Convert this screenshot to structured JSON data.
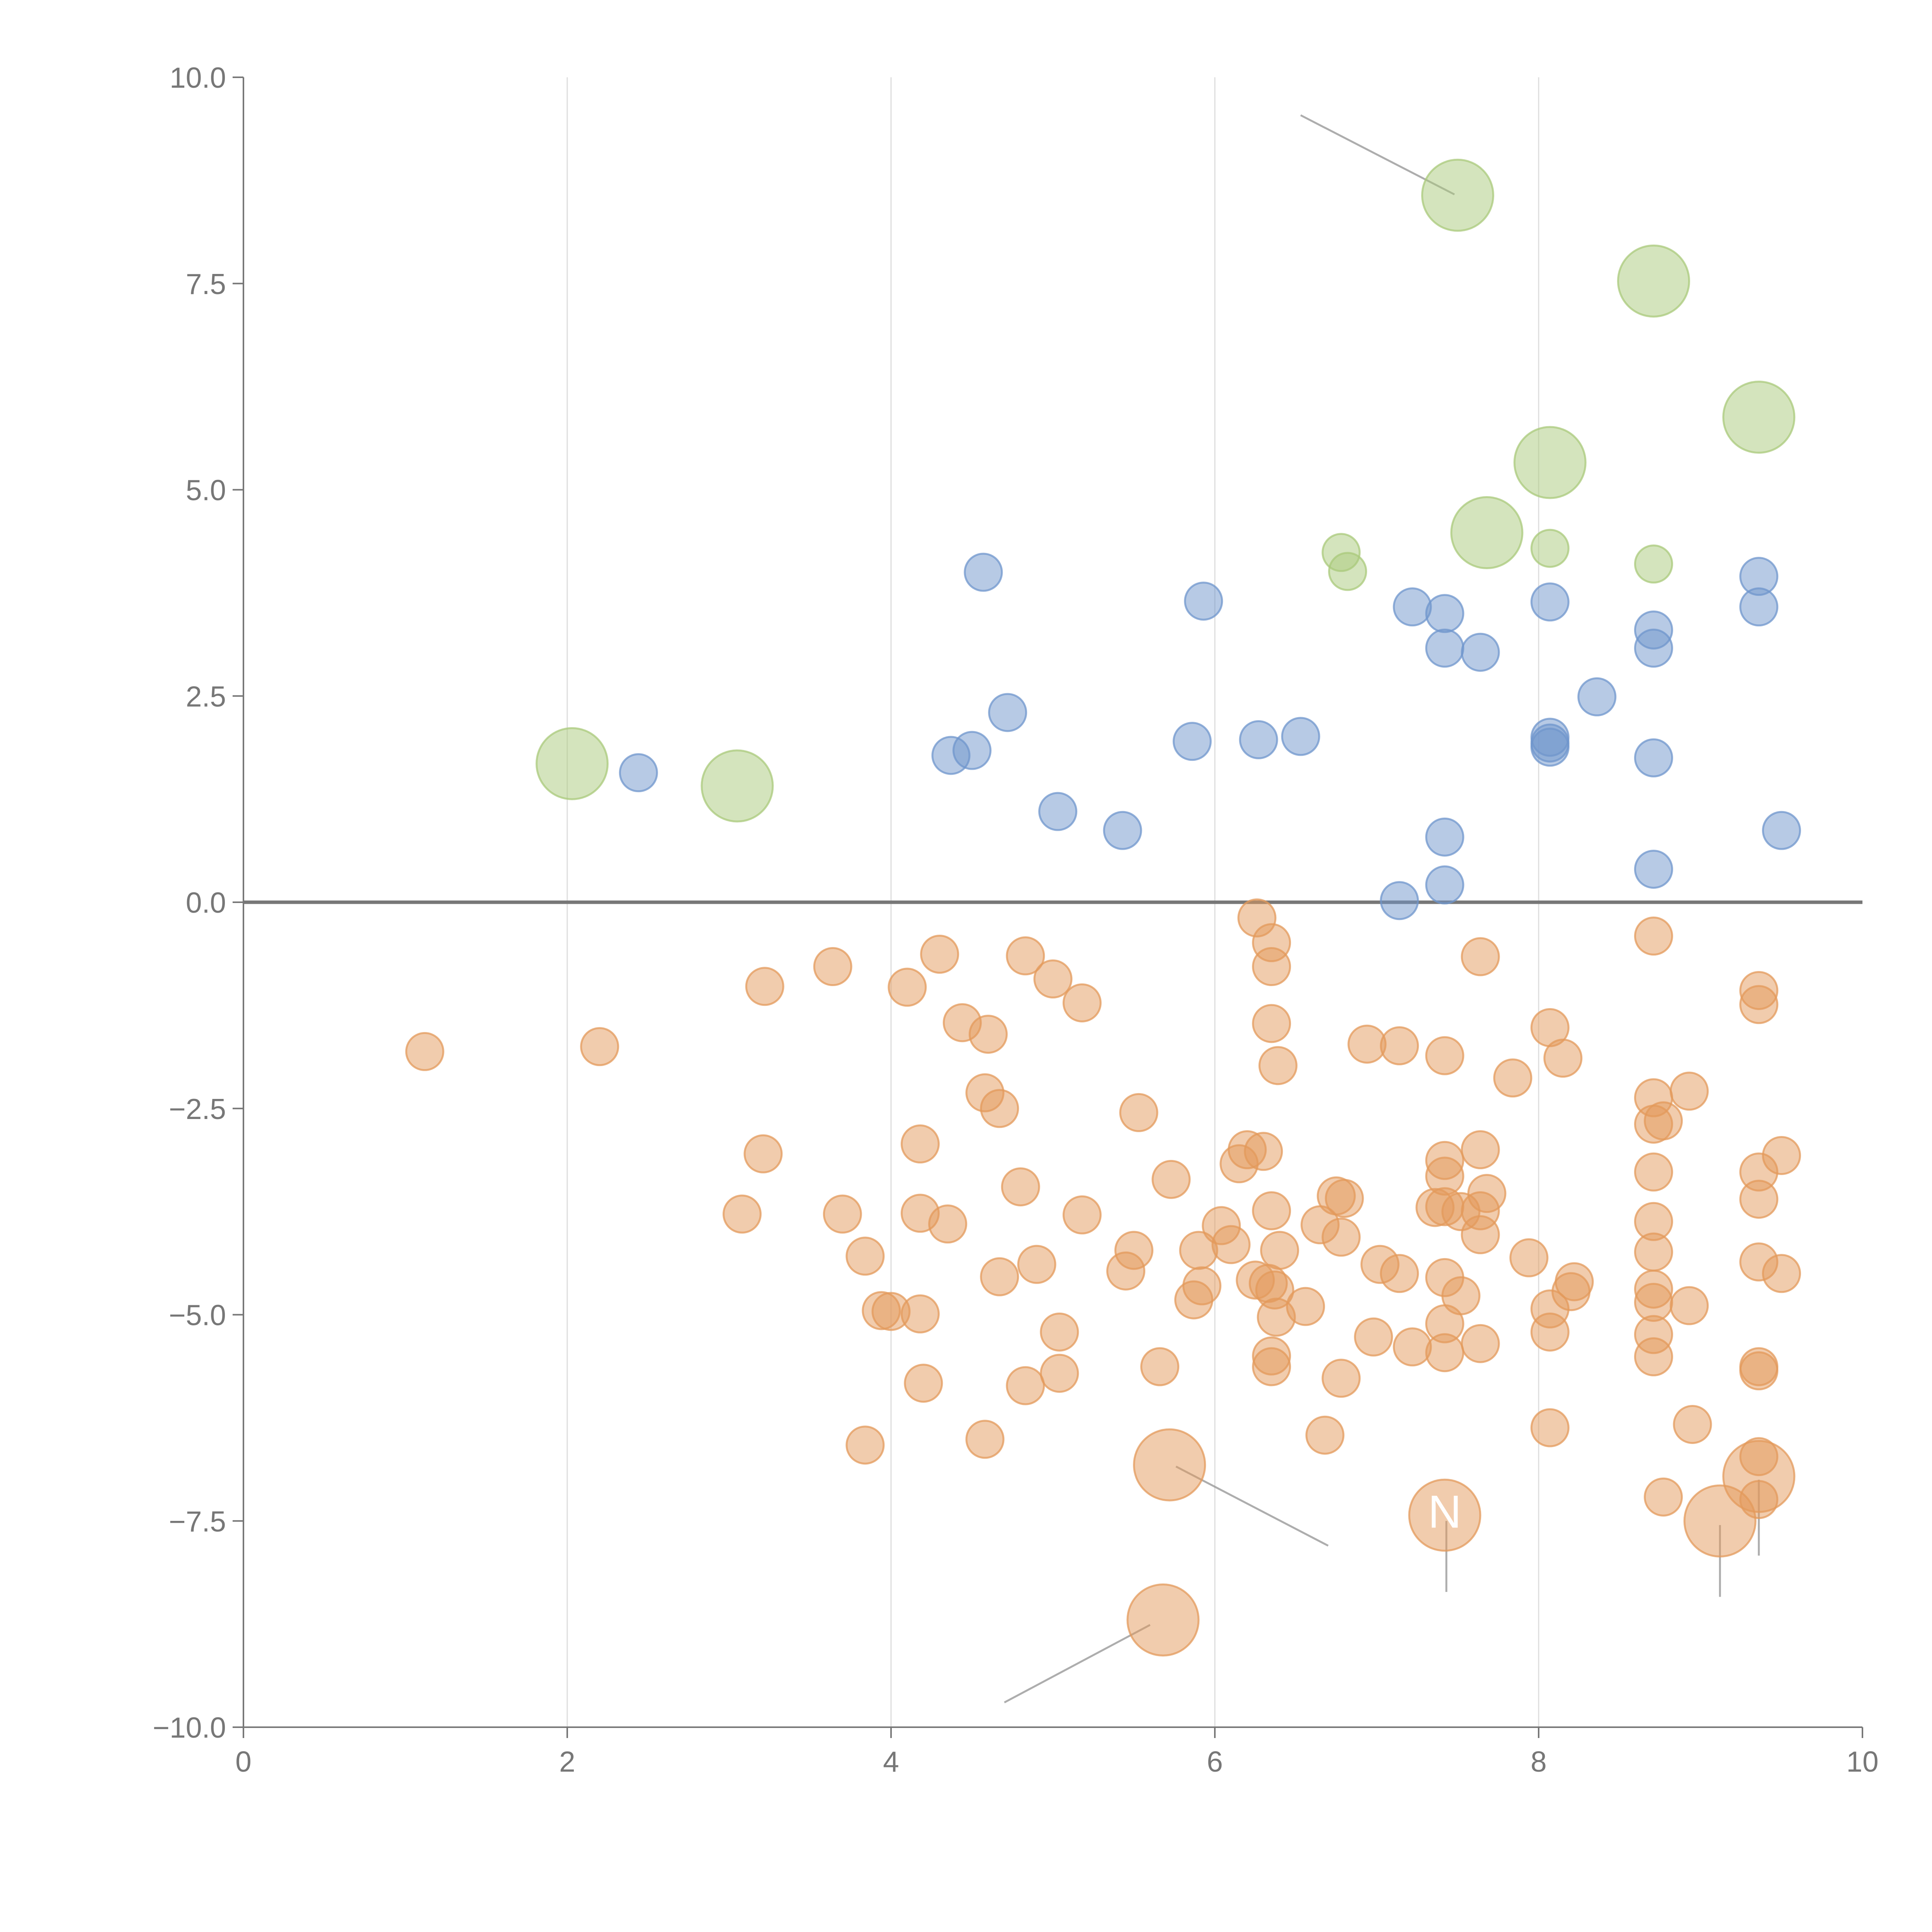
{
  "colors": {
    "blue": "#6f95cc",
    "orange": "#e39a5b",
    "green": "#a9c97b",
    "axis": "#777777",
    "grid": "#dddddd"
  },
  "chart_data": {
    "type": "scatter",
    "title": "",
    "xlabel": "",
    "ylabel": "",
    "xlim": [
      0,
      10
    ],
    "ylim": [
      -10,
      10
    ],
    "grid": "vertical",
    "legend": "none",
    "x_ticks": [
      "0",
      "2",
      "4",
      "6",
      "8",
      "10"
    ],
    "x_tick_values": [
      0,
      2,
      4,
      6,
      8,
      10
    ],
    "y_ticks": [
      "10.0",
      "7.5",
      "5.0",
      "2.5",
      "0.0",
      "−2.5",
      "−5.0",
      "−7.5",
      "−10.0"
    ],
    "y_tick_values": [
      10,
      7.5,
      5,
      2.5,
      0,
      -2.5,
      -5,
      -7.5,
      -10
    ],
    "series": [
      {
        "name": "blue",
        "color": "#6f95cc",
        "size": 1,
        "points": [
          [
            4.57,
            4.0
          ],
          [
            5.93,
            3.65
          ],
          [
            2.44,
            1.57
          ],
          [
            4.37,
            1.78
          ],
          [
            4.5,
            1.84
          ],
          [
            4.72,
            2.3
          ],
          [
            5.03,
            1.1
          ],
          [
            5.43,
            0.87
          ],
          [
            5.86,
            1.95
          ],
          [
            6.27,
            1.97
          ],
          [
            6.53,
            2.01
          ],
          [
            7.22,
            3.58
          ],
          [
            7.42,
            3.5
          ],
          [
            7.42,
            3.08
          ],
          [
            7.64,
            3.03
          ],
          [
            7.42,
            0.79
          ],
          [
            7.42,
            0.21
          ],
          [
            7.14,
            0.02
          ],
          [
            8.07,
            3.64
          ],
          [
            8.07,
            2.0
          ],
          [
            8.07,
            1.88
          ],
          [
            8.07,
            1.93
          ],
          [
            8.36,
            2.49
          ],
          [
            8.71,
            3.3
          ],
          [
            8.71,
            3.08
          ],
          [
            8.71,
            1.75
          ],
          [
            8.71,
            0.4
          ],
          [
            9.36,
            3.95
          ],
          [
            9.36,
            3.58
          ],
          [
            9.5,
            0.87
          ]
        ]
      },
      {
        "name": "green",
        "color": "#a9c97b",
        "size_unit": "relative",
        "points": [
          [
            2.03,
            1.68,
            2
          ],
          [
            3.05,
            1.41,
            2
          ],
          [
            7.5,
            8.57,
            2
          ],
          [
            8.71,
            7.53,
            2
          ],
          [
            9.36,
            5.88,
            2
          ],
          [
            8.07,
            5.33,
            2
          ],
          [
            7.68,
            4.48,
            2
          ],
          [
            6.78,
            4.24,
            1
          ],
          [
            6.82,
            4.01,
            1
          ],
          [
            8.07,
            4.29,
            1
          ],
          [
            8.71,
            4.1,
            1
          ]
        ]
      },
      {
        "name": "orange",
        "color": "#e39a5b",
        "points": [
          [
            1.12,
            -1.81,
            1
          ],
          [
            2.2,
            -1.75,
            1
          ],
          [
            3.22,
            -1.02,
            1
          ],
          [
            3.64,
            -0.78,
            1
          ],
          [
            4.1,
            -1.03,
            1
          ],
          [
            4.3,
            -0.63,
            1
          ],
          [
            4.44,
            -1.46,
            1
          ],
          [
            4.6,
            -1.6,
            1
          ],
          [
            4.83,
            -0.65,
            1
          ],
          [
            5.0,
            -0.93,
            1
          ],
          [
            5.18,
            -1.22,
            1
          ],
          [
            6.26,
            -0.19,
            1
          ],
          [
            6.35,
            -0.49,
            1
          ],
          [
            6.35,
            -0.78,
            1
          ],
          [
            6.35,
            -1.47,
            1
          ],
          [
            6.39,
            -1.98,
            1
          ],
          [
            6.94,
            -1.72,
            1
          ],
          [
            7.14,
            -1.74,
            1
          ],
          [
            7.42,
            -1.86,
            1
          ],
          [
            7.64,
            -0.66,
            1
          ],
          [
            8.07,
            -1.52,
            1
          ],
          [
            8.15,
            -1.89,
            1
          ],
          [
            7.84,
            -2.13,
            1
          ],
          [
            8.71,
            -0.41,
            1
          ],
          [
            4.58,
            -2.31,
            1
          ],
          [
            4.67,
            -2.5,
            1
          ],
          [
            5.53,
            -2.55,
            1
          ],
          [
            3.21,
            -3.05,
            1
          ],
          [
            4.18,
            -2.93,
            1
          ],
          [
            3.08,
            -3.78,
            1
          ],
          [
            3.7,
            -3.78,
            1
          ],
          [
            3.84,
            -4.29,
            1
          ],
          [
            3.94,
            -4.95,
            1
          ],
          [
            4.0,
            -4.96,
            1
          ],
          [
            4.18,
            -4.99,
            1
          ],
          [
            4.18,
            -3.77,
            1
          ],
          [
            4.35,
            -3.9,
            1
          ],
          [
            4.8,
            -3.45,
            1
          ],
          [
            4.67,
            -4.54,
            1
          ],
          [
            4.9,
            -4.39,
            1
          ],
          [
            5.18,
            -3.79,
            1
          ],
          [
            5.5,
            -4.22,
            1
          ],
          [
            5.45,
            -4.47,
            1
          ],
          [
            5.73,
            -3.36,
            1
          ],
          [
            6.04,
            -3.92,
            1
          ],
          [
            6.1,
            -4.15,
            1
          ],
          [
            5.9,
            -4.22,
            1
          ],
          [
            5.92,
            -4.65,
            1
          ],
          [
            5.87,
            -4.82,
            1
          ],
          [
            6.15,
            -3.17,
            1
          ],
          [
            6.2,
            -3.0,
            1
          ],
          [
            6.3,
            -3.02,
            1
          ],
          [
            6.35,
            -3.74,
            1
          ],
          [
            6.4,
            -4.22,
            1
          ],
          [
            6.25,
            -4.58,
            1
          ],
          [
            6.33,
            -4.62,
            1
          ],
          [
            6.37,
            -4.7,
            1
          ],
          [
            6.38,
            -5.03,
            1
          ],
          [
            6.56,
            -4.9,
            1
          ],
          [
            6.65,
            -3.91,
            1
          ],
          [
            6.75,
            -3.56,
            1
          ],
          [
            6.8,
            -3.59,
            1
          ],
          [
            6.78,
            -4.06,
            1
          ],
          [
            7.02,
            -4.39,
            1
          ],
          [
            7.14,
            -4.5,
            1
          ],
          [
            7.36,
            -3.7,
            1
          ],
          [
            7.42,
            -3.13,
            1
          ],
          [
            7.42,
            -3.32,
            1
          ],
          [
            7.42,
            -3.69,
            1
          ],
          [
            7.52,
            -3.75,
            1
          ],
          [
            7.64,
            -3.0,
            1
          ],
          [
            7.68,
            -3.53,
            1
          ],
          [
            7.64,
            -3.74,
            1
          ],
          [
            7.64,
            -4.03,
            1
          ],
          [
            7.42,
            -4.55,
            1
          ],
          [
            7.52,
            -4.77,
            1
          ],
          [
            7.42,
            -5.11,
            1
          ],
          [
            7.42,
            -5.46,
            1
          ],
          [
            7.22,
            -5.39,
            1
          ],
          [
            6.98,
            -5.27,
            1
          ],
          [
            7.64,
            -5.35,
            1
          ],
          [
            7.94,
            -4.31,
            1
          ],
          [
            8.07,
            -4.93,
            1
          ],
          [
            8.07,
            -5.21,
            1
          ],
          [
            8.2,
            -4.72,
            1
          ],
          [
            8.22,
            -4.6,
            1
          ],
          [
            8.71,
            -2.37,
            1
          ],
          [
            8.71,
            -2.69,
            1
          ],
          [
            8.77,
            -2.65,
            1
          ],
          [
            8.93,
            -2.29,
            1
          ],
          [
            8.71,
            -3.27,
            1
          ],
          [
            8.71,
            -3.87,
            1
          ],
          [
            8.71,
            -4.24,
            1
          ],
          [
            8.71,
            -4.69,
            1
          ],
          [
            8.71,
            -4.85,
            1
          ],
          [
            8.71,
            -5.24,
            1
          ],
          [
            8.71,
            -5.51,
            1
          ],
          [
            8.93,
            -4.89,
            1
          ],
          [
            9.36,
            -1.07,
            1
          ],
          [
            9.36,
            -1.24,
            1
          ],
          [
            9.36,
            -3.27,
            1
          ],
          [
            9.36,
            -3.6,
            1
          ],
          [
            9.5,
            -3.07,
            1
          ],
          [
            9.36,
            -4.36,
            1
          ],
          [
            9.5,
            -4.5,
            1
          ],
          [
            9.36,
            -5.63,
            1
          ],
          [
            9.36,
            -5.68,
            1
          ],
          [
            9.36,
            -6.72,
            1
          ],
          [
            9.36,
            -7.24,
            1
          ],
          [
            8.77,
            -7.21,
            1
          ],
          [
            8.95,
            -6.33,
            1
          ],
          [
            8.07,
            -6.37,
            1
          ],
          [
            6.68,
            -6.46,
            1
          ],
          [
            6.35,
            -5.5,
            1
          ],
          [
            6.35,
            -5.63,
            1
          ],
          [
            6.78,
            -5.77,
            1
          ],
          [
            5.66,
            -5.63,
            1
          ],
          [
            5.04,
            -5.21,
            1
          ],
          [
            5.04,
            -5.71,
            1
          ],
          [
            4.83,
            -5.86,
            1
          ],
          [
            4.2,
            -5.83,
            1
          ],
          [
            3.84,
            -6.58,
            1
          ],
          [
            4.58,
            -6.51,
            1
          ],
          [
            5.72,
            -6.82,
            2
          ],
          [
            7.42,
            -7.43,
            2
          ],
          [
            9.36,
            -6.96,
            2
          ],
          [
            9.12,
            -7.5,
            2
          ],
          [
            5.68,
            -8.7,
            2
          ]
        ]
      }
    ],
    "annotations": [
      {
        "text": "N",
        "x": 7.42,
        "y": -7.58,
        "color": "#ffffff"
      }
    ],
    "leader_lines": [
      {
        "from": [
          6.53,
          9.54
        ],
        "to": [
          7.48,
          8.58
        ]
      },
      {
        "from": [
          5.76,
          -6.84
        ],
        "to": [
          6.7,
          -7.8
        ]
      },
      {
        "from": [
          5.6,
          -8.76
        ],
        "to": [
          4.7,
          -9.7
        ]
      },
      {
        "from": [
          7.43,
          -7.5
        ],
        "to": [
          7.43,
          -8.36
        ]
      },
      {
        "from": [
          9.12,
          -7.55
        ],
        "to": [
          9.12,
          -8.42
        ]
      },
      {
        "from": [
          9.36,
          -7.0
        ],
        "to": [
          9.36,
          -7.92
        ]
      }
    ]
  }
}
